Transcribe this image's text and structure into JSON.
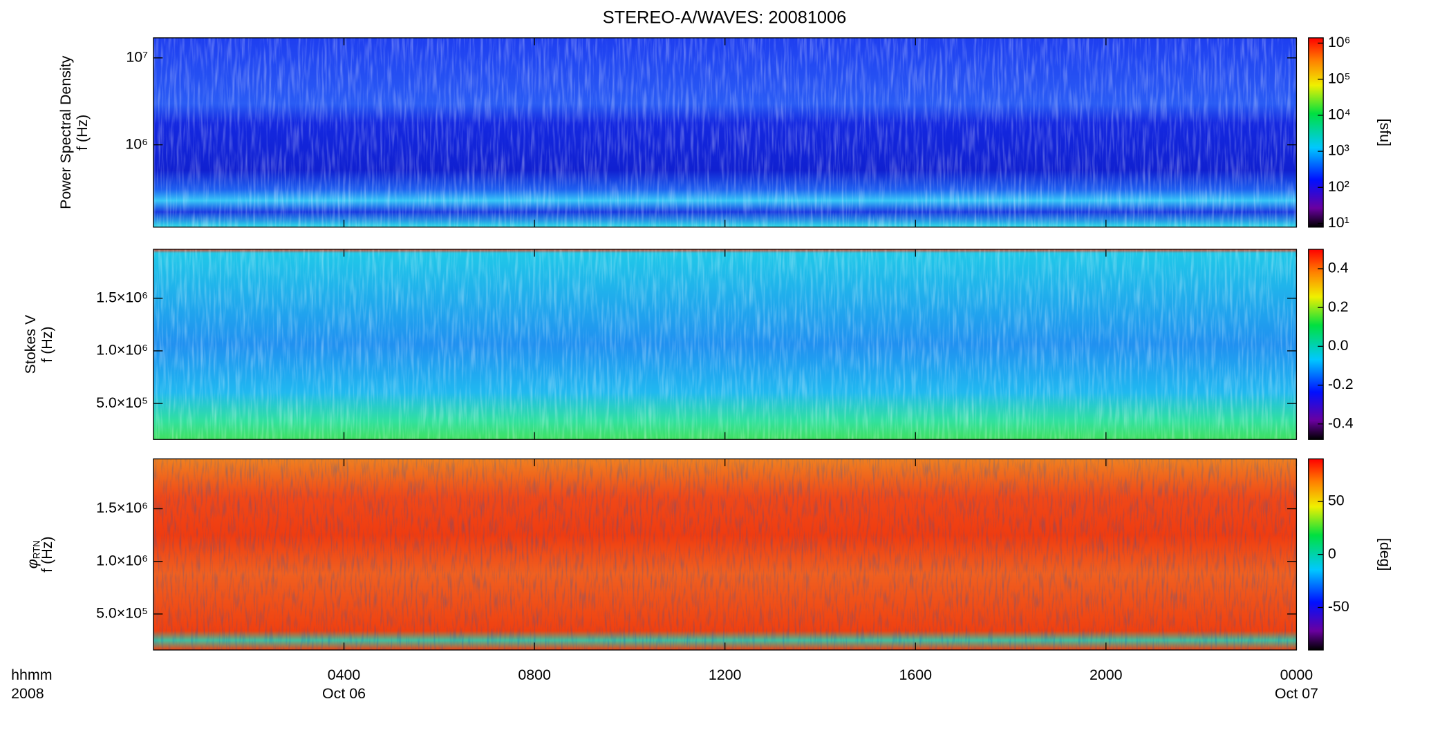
{
  "chart_data": {
    "type": "spectrogram",
    "title": "STEREO-A/WAVES: 20081006",
    "xlabel": [
      "hhmm",
      "2008"
    ],
    "xlim": [
      0,
      24
    ],
    "xticks": [
      {
        "value": 4,
        "label": "0400"
      },
      {
        "value": 8,
        "label": "0800"
      },
      {
        "value": 12,
        "label": "1200"
      },
      {
        "value": 16,
        "label": "1600"
      },
      {
        "value": 20,
        "label": "2000"
      },
      {
        "value": 24,
        "label": "0000"
      }
    ],
    "xdates": [
      {
        "value": 4,
        "label": "Oct 06"
      },
      {
        "value": 24,
        "label": "Oct 07"
      }
    ],
    "panels": [
      {
        "type": "heatmap",
        "ylabel": [
          "Power Spectral Density",
          "f (Hz)"
        ],
        "ylog": true,
        "ylim": [
          113000,
          17000000
        ],
        "yticks": [
          {
            "value": 1000000,
            "label": "10⁶"
          },
          {
            "value": 10000000,
            "label": "10⁷"
          }
        ],
        "colorbar": {
          "log": true,
          "lim": [
            7.9,
            1400000
          ],
          "label": "[sfu]",
          "ticks": [
            {
              "value": 10,
              "label": "10¹"
            },
            {
              "value": 100,
              "label": "10²"
            },
            {
              "value": 1000,
              "label": "10³"
            },
            {
              "value": 10000,
              "label": "10⁴"
            },
            {
              "value": 100000,
              "label": "10⁵"
            },
            {
              "value": 1000000,
              "label": "10⁶"
            }
          ]
        }
      },
      {
        "type": "heatmap",
        "ylabel": [
          "Stokes V",
          "f (Hz)"
        ],
        "ylim": [
          158000,
          1965000
        ],
        "yticks": [
          {
            "value": 500000,
            "label": "5.0×10⁵"
          },
          {
            "value": 1000000,
            "label": "1.0×10⁶"
          },
          {
            "value": 1500000,
            "label": "1.5×10⁶"
          }
        ],
        "colorbar": {
          "lim": [
            -0.48,
            0.5
          ],
          "ticks": [
            -0.4,
            -0.2,
            {
              "value": 0,
              "label": "0.0"
            },
            0.2,
            0.4
          ]
        }
      },
      {
        "type": "heatmap",
        "ylabel": [
          "φ",
          "f (Hz)"
        ],
        "ylabel_sub": "RTN",
        "ylim": [
          158000,
          1974000
        ],
        "yticks": [
          {
            "value": 500000,
            "label": "5.0×10⁵"
          },
          {
            "value": 1000000,
            "label": "1.0×10⁶"
          },
          {
            "value": 1500000,
            "label": "1.5×10⁶"
          }
        ],
        "colorbar": {
          "lim": [
            -90,
            90
          ],
          "label": "[deg]",
          "ticks": [
            -50,
            0,
            50
          ]
        }
      }
    ]
  }
}
